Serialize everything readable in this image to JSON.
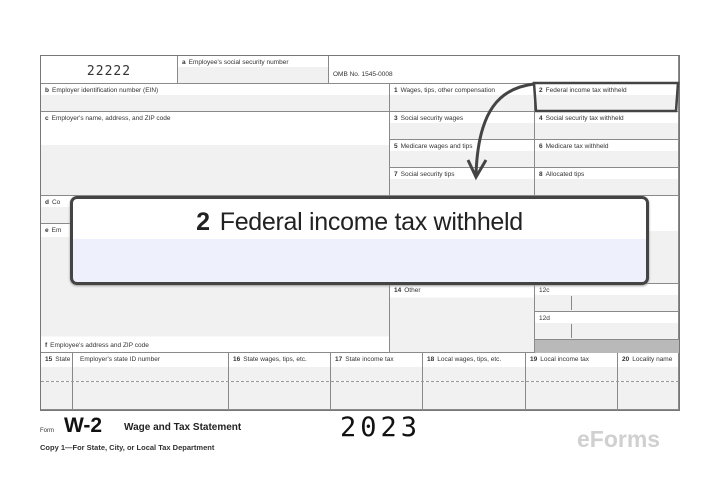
{
  "form": {
    "control_number": "22222",
    "box_a": "Employee's social security number",
    "omb": "OMB No. 1545-0008",
    "box_b": "Employer identification number (EIN)",
    "box_c": "Employer's name, address, and ZIP code",
    "box_d": "Co",
    "box_e": "Em",
    "box_f": "Employee's address and ZIP code",
    "boxes": [
      {
        "num": "1",
        "label": "Wages, tips, other compensation"
      },
      {
        "num": "2",
        "label": "Federal income tax withheld"
      },
      {
        "num": "3",
        "label": "Social security wages"
      },
      {
        "num": "4",
        "label": "Social security tax withheld"
      },
      {
        "num": "5",
        "label": "Medicare wages and tips"
      },
      {
        "num": "6",
        "label": "Medicare tax withheld"
      },
      {
        "num": "7",
        "label": "Social security tips"
      },
      {
        "num": "8",
        "label": "Allocated tips"
      }
    ],
    "box14": {
      "num": "14",
      "label": "Other"
    },
    "box12c": "12c",
    "box12d": "12d",
    "bottom": [
      {
        "num": "15",
        "label": "State"
      },
      {
        "num": "",
        "label": "Employer's state ID number"
      },
      {
        "num": "16",
        "label": "State wages, tips, etc."
      },
      {
        "num": "17",
        "label": "State income tax"
      },
      {
        "num": "18",
        "label": "Local wages, tips, etc."
      },
      {
        "num": "19",
        "label": "Local income tax"
      },
      {
        "num": "20",
        "label": "Locality name"
      }
    ]
  },
  "footer": {
    "form_word": "Form",
    "form_name": "W-2",
    "title": "Wage and Tax Statement",
    "year": "2023",
    "copy": "Copy 1—For State, City, or Local Tax Department",
    "logo": "eForms"
  },
  "callout": {
    "num": "2",
    "label": "Federal income tax withheld"
  },
  "colors": {
    "highlight_border": "#444444",
    "callout_fill": "#eef0fb"
  }
}
